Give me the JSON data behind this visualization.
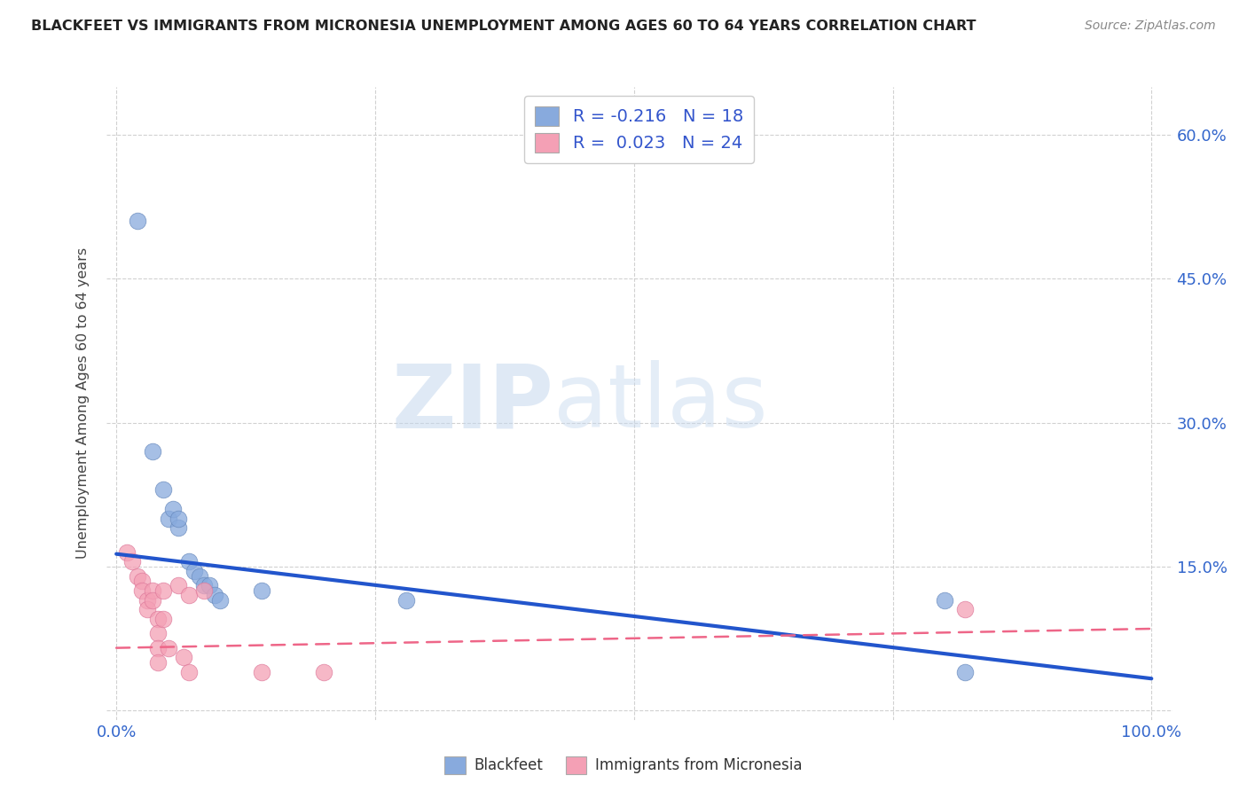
{
  "title": "BLACKFEET VS IMMIGRANTS FROM MICRONESIA UNEMPLOYMENT AMONG AGES 60 TO 64 YEARS CORRELATION CHART",
  "source": "Source: ZipAtlas.com",
  "ylabel": "Unemployment Among Ages 60 to 64 years",
  "xlim": [
    -0.01,
    1.02
  ],
  "ylim": [
    -0.01,
    0.65
  ],
  "xticks": [
    0.0,
    0.25,
    0.5,
    0.75,
    1.0
  ],
  "yticks": [
    0.0,
    0.15,
    0.3,
    0.45,
    0.6
  ],
  "background_color": "#ffffff",
  "blue_color": "#88aadd",
  "pink_color": "#f4a0b5",
  "blue_edge_color": "#6688bb",
  "pink_edge_color": "#dd7799",
  "blue_trend_color": "#2255cc",
  "pink_trend_color": "#ee6688",
  "legend_line1": "R = -0.216   N = 18",
  "legend_line2": "R =  0.023   N = 24",
  "blue_scatter": [
    [
      0.02,
      0.51
    ],
    [
      0.035,
      0.27
    ],
    [
      0.045,
      0.23
    ],
    [
      0.05,
      0.2
    ],
    [
      0.055,
      0.21
    ],
    [
      0.06,
      0.19
    ],
    [
      0.06,
      0.2
    ],
    [
      0.07,
      0.155
    ],
    [
      0.075,
      0.145
    ],
    [
      0.08,
      0.14
    ],
    [
      0.085,
      0.13
    ],
    [
      0.09,
      0.13
    ],
    [
      0.095,
      0.12
    ],
    [
      0.1,
      0.115
    ],
    [
      0.14,
      0.125
    ],
    [
      0.28,
      0.115
    ],
    [
      0.8,
      0.115
    ],
    [
      0.82,
      0.04
    ]
  ],
  "pink_scatter": [
    [
      0.01,
      0.165
    ],
    [
      0.015,
      0.155
    ],
    [
      0.02,
      0.14
    ],
    [
      0.025,
      0.135
    ],
    [
      0.025,
      0.125
    ],
    [
      0.03,
      0.115
    ],
    [
      0.03,
      0.105
    ],
    [
      0.035,
      0.125
    ],
    [
      0.035,
      0.115
    ],
    [
      0.04,
      0.095
    ],
    [
      0.04,
      0.08
    ],
    [
      0.04,
      0.065
    ],
    [
      0.04,
      0.05
    ],
    [
      0.045,
      0.125
    ],
    [
      0.045,
      0.095
    ],
    [
      0.05,
      0.065
    ],
    [
      0.06,
      0.13
    ],
    [
      0.065,
      0.055
    ],
    [
      0.07,
      0.04
    ],
    [
      0.07,
      0.12
    ],
    [
      0.085,
      0.125
    ],
    [
      0.14,
      0.04
    ],
    [
      0.2,
      0.04
    ],
    [
      0.82,
      0.105
    ]
  ],
  "blue_trend_x": [
    0.0,
    1.0
  ],
  "blue_trend_y": [
    0.163,
    0.033
  ],
  "pink_trend_x": [
    0.0,
    1.0
  ],
  "pink_trend_y": [
    0.065,
    0.085
  ],
  "watermark_zip": "ZIP",
  "watermark_atlas": "atlas"
}
